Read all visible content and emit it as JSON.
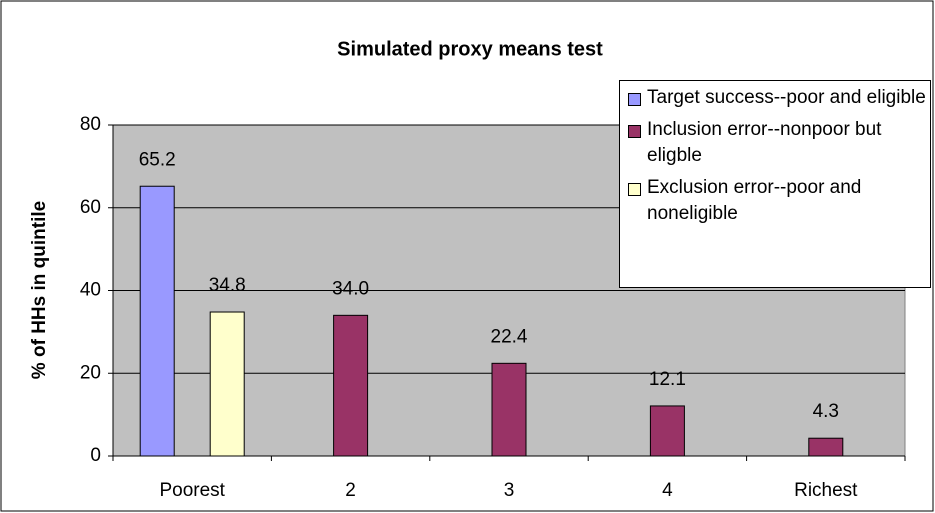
{
  "chart_data": {
    "type": "bar",
    "title": "Simulated proxy means test",
    "y_label": "% of HHs in quintile",
    "categories": [
      "Poorest",
      "2",
      "3",
      "4",
      "Richest"
    ],
    "series": [
      {
        "name": "Target success--poor and eligible",
        "color": "#9999ff",
        "values": [
          65.2,
          null,
          null,
          null,
          null
        ]
      },
      {
        "name": "Inclusion error--nonpoor but eligble",
        "color": "#993366",
        "values": [
          null,
          34.0,
          22.4,
          12.1,
          4.3
        ],
        "value_labels": [
          null,
          "34.0",
          "22.4",
          "12.1",
          "4.3"
        ]
      },
      {
        "name": "Exclusion error--poor and noneligible",
        "color": "#ffffcc",
        "values": [
          34.8,
          null,
          null,
          null,
          null
        ]
      }
    ],
    "ylim": [
      0,
      80
    ],
    "yticks": [
      0,
      20,
      40,
      60,
      80
    ],
    "grid": true
  }
}
